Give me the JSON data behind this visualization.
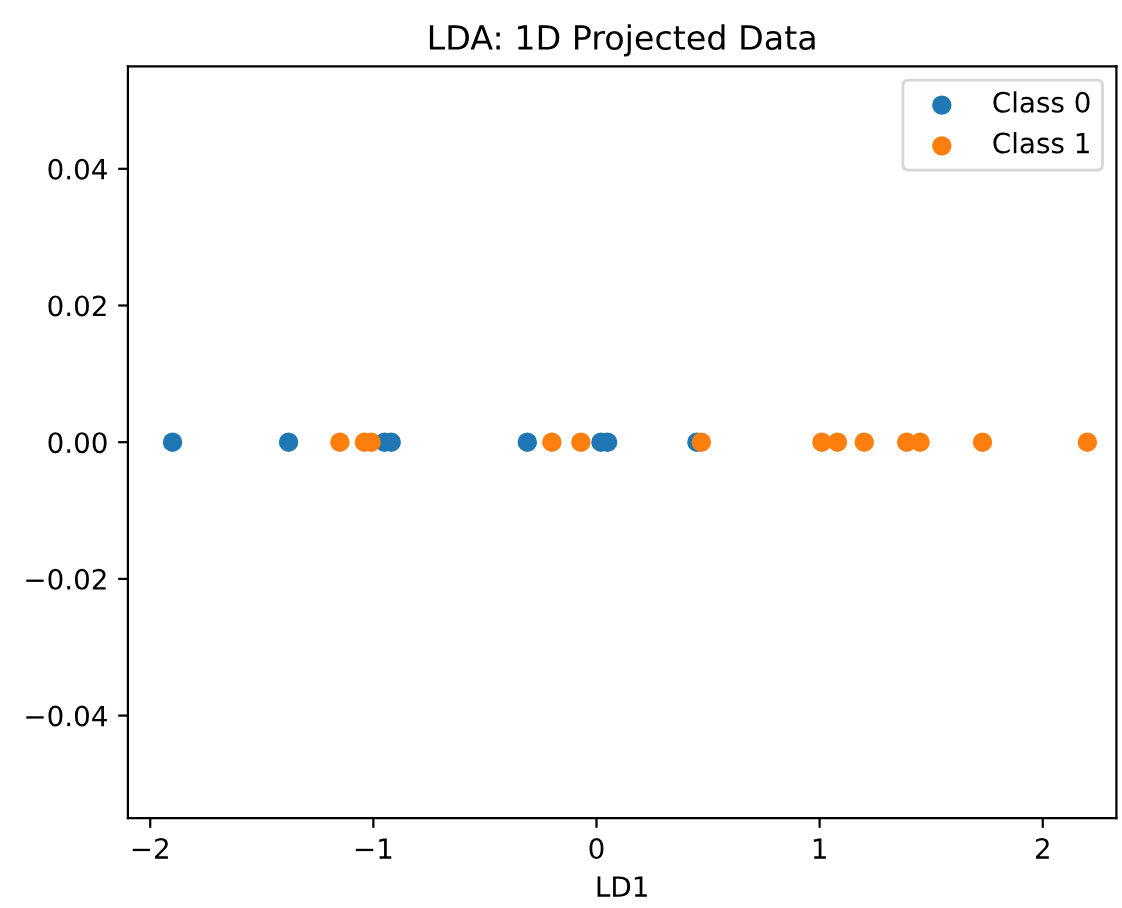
{
  "chart_data": {
    "type": "scatter",
    "title": "LDA: 1D Projected Data",
    "xlabel": "LD1",
    "xlim": [
      -2.1,
      2.33
    ],
    "xticks": [
      {
        "value": -2,
        "label": "−2"
      },
      {
        "value": -1,
        "label": "−1"
      },
      0,
      1,
      2
    ],
    "ylim": [
      -0.055,
      0.055
    ],
    "yticks": [
      {
        "value": -0.04,
        "label": "−0.04"
      },
      {
        "value": -0.02,
        "label": "−0.02"
      },
      {
        "value": 0.0,
        "label": "0.00"
      },
      {
        "value": 0.02,
        "label": "0.02"
      },
      {
        "value": 0.04,
        "label": "0.04"
      }
    ],
    "legend": "top right",
    "marker": "circle",
    "grid": false,
    "series": [
      {
        "name": "Class 0",
        "color": "#1f77b4",
        "x": [
          -1.9,
          -1.38,
          -0.95,
          -0.92,
          -0.31,
          0.02,
          0.05,
          0.45
        ],
        "values": [
          0,
          0,
          0,
          0,
          0,
          0,
          0,
          0
        ]
      },
      {
        "name": "Class 1",
        "color": "#ff7f0e",
        "x": [
          -1.15,
          -1.04,
          -1.01,
          -0.2,
          -0.07,
          0.47,
          1.01,
          1.08,
          1.2,
          1.39,
          1.45,
          1.73,
          2.2
        ],
        "values": [
          0,
          0,
          0,
          0,
          0,
          0,
          0,
          0,
          0,
          0,
          0,
          0,
          0
        ]
      }
    ]
  }
}
